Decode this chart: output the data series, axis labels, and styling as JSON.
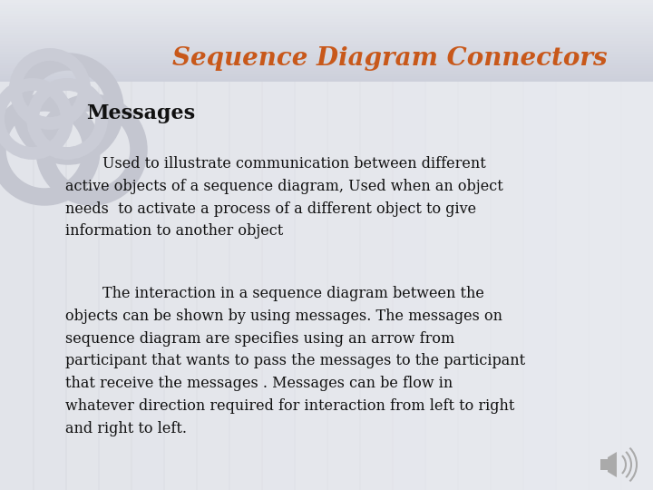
{
  "title": "Sequence Diagram Connectors",
  "title_color": "#C8581A",
  "title_fontsize": 20,
  "subtitle": "Messages",
  "subtitle_fontsize": 16,
  "para1_indent": "        Used to illustrate communication between different",
  "para1_line2": "active objects of a sequence diagram, Used when an object",
  "para1_line3": "needs  to activate a process of a different object to give",
  "para1_line4": "information to another object",
  "para2_indent": "        The interaction in a sequence diagram between the",
  "para2_line2": "objects can be shown by using messages. The messages on",
  "para2_line3": "sequence diagram are specifies using an arrow from",
  "para2_line4": "participant that wants to pass the messages to the participant",
  "para2_line5": "that receive the messages . Messages can be flow in",
  "para2_line6": "whatever direction required for interaction from left to right",
  "para2_line7": "and right to left.",
  "para_fontsize": 11.5,
  "para_color": "#111111",
  "bg_color": "#e8eaef",
  "header_bg_color": "#d4d7e0",
  "logo_color": "#c8cad4",
  "logo2_color": "#d0d2da"
}
